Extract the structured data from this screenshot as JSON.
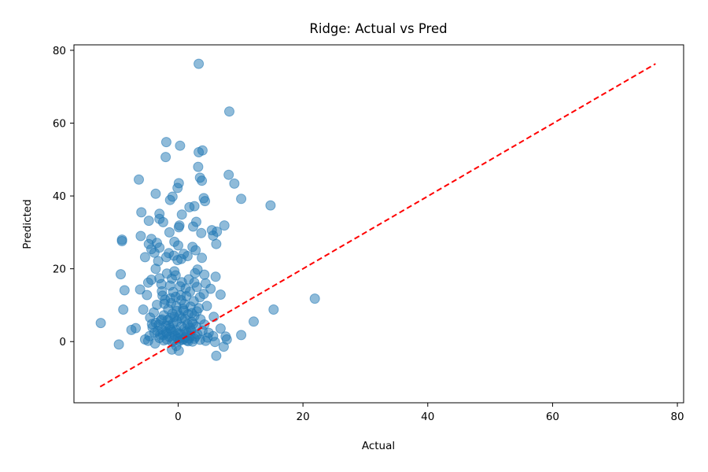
{
  "chart_data": {
    "type": "scatter",
    "title": "Ridge: Actual vs Pred",
    "xlabel": "Actual",
    "ylabel": "Predicted",
    "xlim": [
      -16.7,
      81
    ],
    "ylim": [
      -16.8,
      81.5
    ],
    "xticks": [
      0,
      20,
      40,
      60,
      80
    ],
    "yticks": [
      0,
      20,
      40,
      60,
      80
    ],
    "grid": false,
    "colors": {
      "points": "#1f77b4",
      "reference_line": "#ff0000"
    },
    "reference_line": {
      "style": "dashed",
      "from": [
        -12.5,
        -12.4
      ],
      "to": [
        76.5,
        76.3
      ]
    },
    "points": [
      [
        3.3,
        76.3
      ],
      [
        8.2,
        63.2
      ],
      [
        -1.9,
        54.8
      ],
      [
        0.3,
        53.8
      ],
      [
        3.9,
        52.5
      ],
      [
        3.3,
        52.0
      ],
      [
        -2.0,
        50.7
      ],
      [
        3.2,
        48.0
      ],
      [
        3.5,
        45.0
      ],
      [
        8.1,
        45.8
      ],
      [
        3.8,
        44.2
      ],
      [
        9.0,
        43.4
      ],
      [
        0.1,
        43.5
      ],
      [
        -6.3,
        44.5
      ],
      [
        -0.1,
        42.2
      ],
      [
        -3.6,
        40.6
      ],
      [
        -0.9,
        39.8
      ],
      [
        -1.3,
        38.9
      ],
      [
        4.1,
        39.4
      ],
      [
        10.1,
        39.2
      ],
      [
        4.3,
        38.6
      ],
      [
        14.8,
        37.4
      ],
      [
        2.6,
        37.2
      ],
      [
        1.8,
        36.9
      ],
      [
        -5.9,
        35.5
      ],
      [
        -3.0,
        35.1
      ],
      [
        0.6,
        34.9
      ],
      [
        -4.7,
        33.2
      ],
      [
        -3.0,
        33.7
      ],
      [
        2.9,
        32.9
      ],
      [
        -2.4,
        32.8
      ],
      [
        0.2,
        31.9
      ],
      [
        7.4,
        31.9
      ],
      [
        0.1,
        31.4
      ],
      [
        2.4,
        31.6
      ],
      [
        5.4,
        30.6
      ],
      [
        6.2,
        30.2
      ],
      [
        -1.4,
        30.0
      ],
      [
        3.7,
        29.8
      ],
      [
        5.6,
        29.1
      ],
      [
        -6.0,
        29.0
      ],
      [
        -9.0,
        28.0
      ],
      [
        -9.0,
        27.6
      ],
      [
        -4.3,
        28.2
      ],
      [
        -3.4,
        27.1
      ],
      [
        -0.6,
        27.4
      ],
      [
        -4.7,
        26.8
      ],
      [
        0.0,
        26.4
      ],
      [
        2.3,
        26.0
      ],
      [
        6.1,
        26.8
      ],
      [
        -4.3,
        25.4
      ],
      [
        -3.0,
        25.8
      ],
      [
        2.8,
        25.1
      ],
      [
        -3.8,
        24.4
      ],
      [
        -1.5,
        24.3
      ],
      [
        0.9,
        24.1
      ],
      [
        -5.3,
        23.2
      ],
      [
        -0.7,
        23.6
      ],
      [
        1.5,
        23.5
      ],
      [
        3.8,
        23.0
      ],
      [
        -1.9,
        23.2
      ],
      [
        0.5,
        22.7
      ],
      [
        -3.2,
        22.1
      ],
      [
        -0.1,
        22.4
      ],
      [
        -3.6,
        20.0
      ],
      [
        3.1,
        19.8
      ],
      [
        -0.6,
        19.3
      ],
      [
        -9.2,
        18.5
      ],
      [
        2.7,
        18.8
      ],
      [
        -4.3,
        17.0
      ],
      [
        -1.8,
        18.7
      ],
      [
        4.2,
        18.4
      ],
      [
        6.0,
        17.8
      ],
      [
        -3.0,
        17.4
      ],
      [
        -1.0,
        17.3
      ],
      [
        1.7,
        17.1
      ],
      [
        -4.8,
        16.2
      ],
      [
        0.6,
        16.3
      ],
      [
        4.4,
        16.0
      ],
      [
        2.6,
        16.2
      ],
      [
        -2.7,
        15.8
      ],
      [
        -1.3,
        15.4
      ],
      [
        0.3,
        15.2
      ],
      [
        3.0,
        15.0
      ],
      [
        5.2,
        14.5
      ],
      [
        -6.1,
        14.3
      ],
      [
        -8.6,
        14.1
      ],
      [
        -2.6,
        13.8
      ],
      [
        -0.8,
        13.6
      ],
      [
        1.9,
        13.7
      ],
      [
        4.1,
        13.1
      ],
      [
        6.8,
        12.9
      ],
      [
        -5.0,
        12.8
      ],
      [
        -2.5,
        12.6
      ],
      [
        -0.4,
        12.3
      ],
      [
        1.3,
        12.5
      ],
      [
        3.5,
        12.2
      ],
      [
        21.9,
        11.8
      ],
      [
        -2.1,
        11.5
      ],
      [
        0.5,
        11.4
      ],
      [
        2.5,
        11.1
      ],
      [
        -1.1,
        10.6
      ],
      [
        1.0,
        10.3
      ],
      [
        -3.4,
        10.1
      ],
      [
        4.6,
        9.8
      ],
      [
        -0.3,
        9.7
      ],
      [
        2.0,
        9.6
      ],
      [
        -8.8,
        8.8
      ],
      [
        15.3,
        8.8
      ],
      [
        -5.6,
        8.8
      ],
      [
        -1.6,
        8.9
      ],
      [
        0.9,
        8.5
      ],
      [
        3.0,
        8.3
      ],
      [
        -3.9,
        8.0
      ],
      [
        -0.9,
        7.7
      ],
      [
        1.6,
        7.5
      ],
      [
        -2.3,
        7.2
      ],
      [
        0.2,
        7.1
      ],
      [
        2.6,
        7.0
      ],
      [
        5.7,
        6.8
      ],
      [
        -4.5,
        6.6
      ],
      [
        -1.3,
        6.4
      ],
      [
        1.1,
        6.2
      ],
      [
        3.6,
        6.1
      ],
      [
        -2.8,
        5.8
      ],
      [
        -0.2,
        5.6
      ],
      [
        2.2,
        5.4
      ],
      [
        12.1,
        5.5
      ],
      [
        -3.6,
        5.2
      ],
      [
        -0.8,
        5.0
      ],
      [
        1.5,
        4.8
      ],
      [
        4.2,
        4.7
      ],
      [
        -12.4,
        5.1
      ],
      [
        -2.0,
        4.4
      ],
      [
        0.5,
        4.2
      ],
      [
        2.9,
        4.1
      ],
      [
        -4.1,
        3.9
      ],
      [
        -1.3,
        3.7
      ],
      [
        1.0,
        3.5
      ],
      [
        6.8,
        3.6
      ],
      [
        -6.8,
        3.7
      ],
      [
        -2.6,
        3.3
      ],
      [
        -0.3,
        3.1
      ],
      [
        2.1,
        3.0
      ],
      [
        -7.5,
        3.2
      ],
      [
        -3.3,
        2.9
      ],
      [
        -0.9,
        2.7
      ],
      [
        1.6,
        2.5
      ],
      [
        4.9,
        2.4
      ],
      [
        -1.8,
        2.2
      ],
      [
        0.4,
        2.1
      ],
      [
        3.1,
        2.0
      ],
      [
        10.1,
        1.8
      ],
      [
        -2.4,
        1.8
      ],
      [
        -0.5,
        1.6
      ],
      [
        2.0,
        1.5
      ],
      [
        5.6,
        1.5
      ],
      [
        -4.6,
        1.5
      ],
      [
        -1.4,
        1.3
      ],
      [
        1.1,
        1.2
      ],
      [
        7.6,
        1.4
      ],
      [
        -3.0,
        1.0
      ],
      [
        -0.1,
        0.9
      ],
      [
        2.6,
        0.8
      ],
      [
        -5.3,
        0.6
      ],
      [
        -1.8,
        0.6
      ],
      [
        0.7,
        0.5
      ],
      [
        3.5,
        0.5
      ],
      [
        -2.3,
        0.3
      ],
      [
        0.2,
        0.2
      ],
      [
        1.6,
        0.1
      ],
      [
        -4.8,
        0.2
      ],
      [
        -0.9,
        -0.1
      ],
      [
        2.3,
        0.0
      ],
      [
        5.9,
        -0.1
      ],
      [
        -9.5,
        -0.8
      ],
      [
        7.8,
        0.6
      ],
      [
        4.4,
        0.2
      ],
      [
        -3.7,
        -0.5
      ],
      [
        -0.3,
        -1.2
      ],
      [
        -1.0,
        -2.2
      ],
      [
        0.1,
        -2.5
      ],
      [
        7.3,
        -1.4
      ],
      [
        6.1,
        -3.9
      ],
      [
        1.4,
        0.3
      ],
      [
        -1.5,
        4.4
      ],
      [
        -0.6,
        6.8
      ],
      [
        0.8,
        9.0
      ],
      [
        -1.9,
        2.6
      ],
      [
        0.3,
        1.0
      ],
      [
        1.9,
        3.8
      ],
      [
        -2.9,
        1.9
      ],
      [
        0.6,
        6.3
      ],
      [
        -1.2,
        11.9
      ],
      [
        1.3,
        2.8
      ],
      [
        -0.2,
        8.4
      ],
      [
        2.8,
        1.4
      ],
      [
        -3.1,
        4.6
      ],
      [
        0.9,
        0.7
      ],
      [
        -1.7,
        5.9
      ],
      [
        3.9,
        3.0
      ],
      [
        -2.2,
        10.4
      ],
      [
        0.0,
        2.3
      ],
      [
        2.2,
        7.8
      ],
      [
        -0.7,
        0.4
      ],
      [
        1.2,
        14.6
      ],
      [
        -3.8,
        2.4
      ],
      [
        4.7,
        1.1
      ],
      [
        -1.1,
        3.2
      ],
      [
        0.4,
        12.7
      ],
      [
        2.4,
        4.9
      ],
      [
        -2.6,
        6.1
      ],
      [
        3.3,
        9.2
      ],
      [
        -0.4,
        18.2
      ],
      [
        1.7,
        0.9
      ],
      [
        -4.2,
        4.8
      ]
    ]
  }
}
